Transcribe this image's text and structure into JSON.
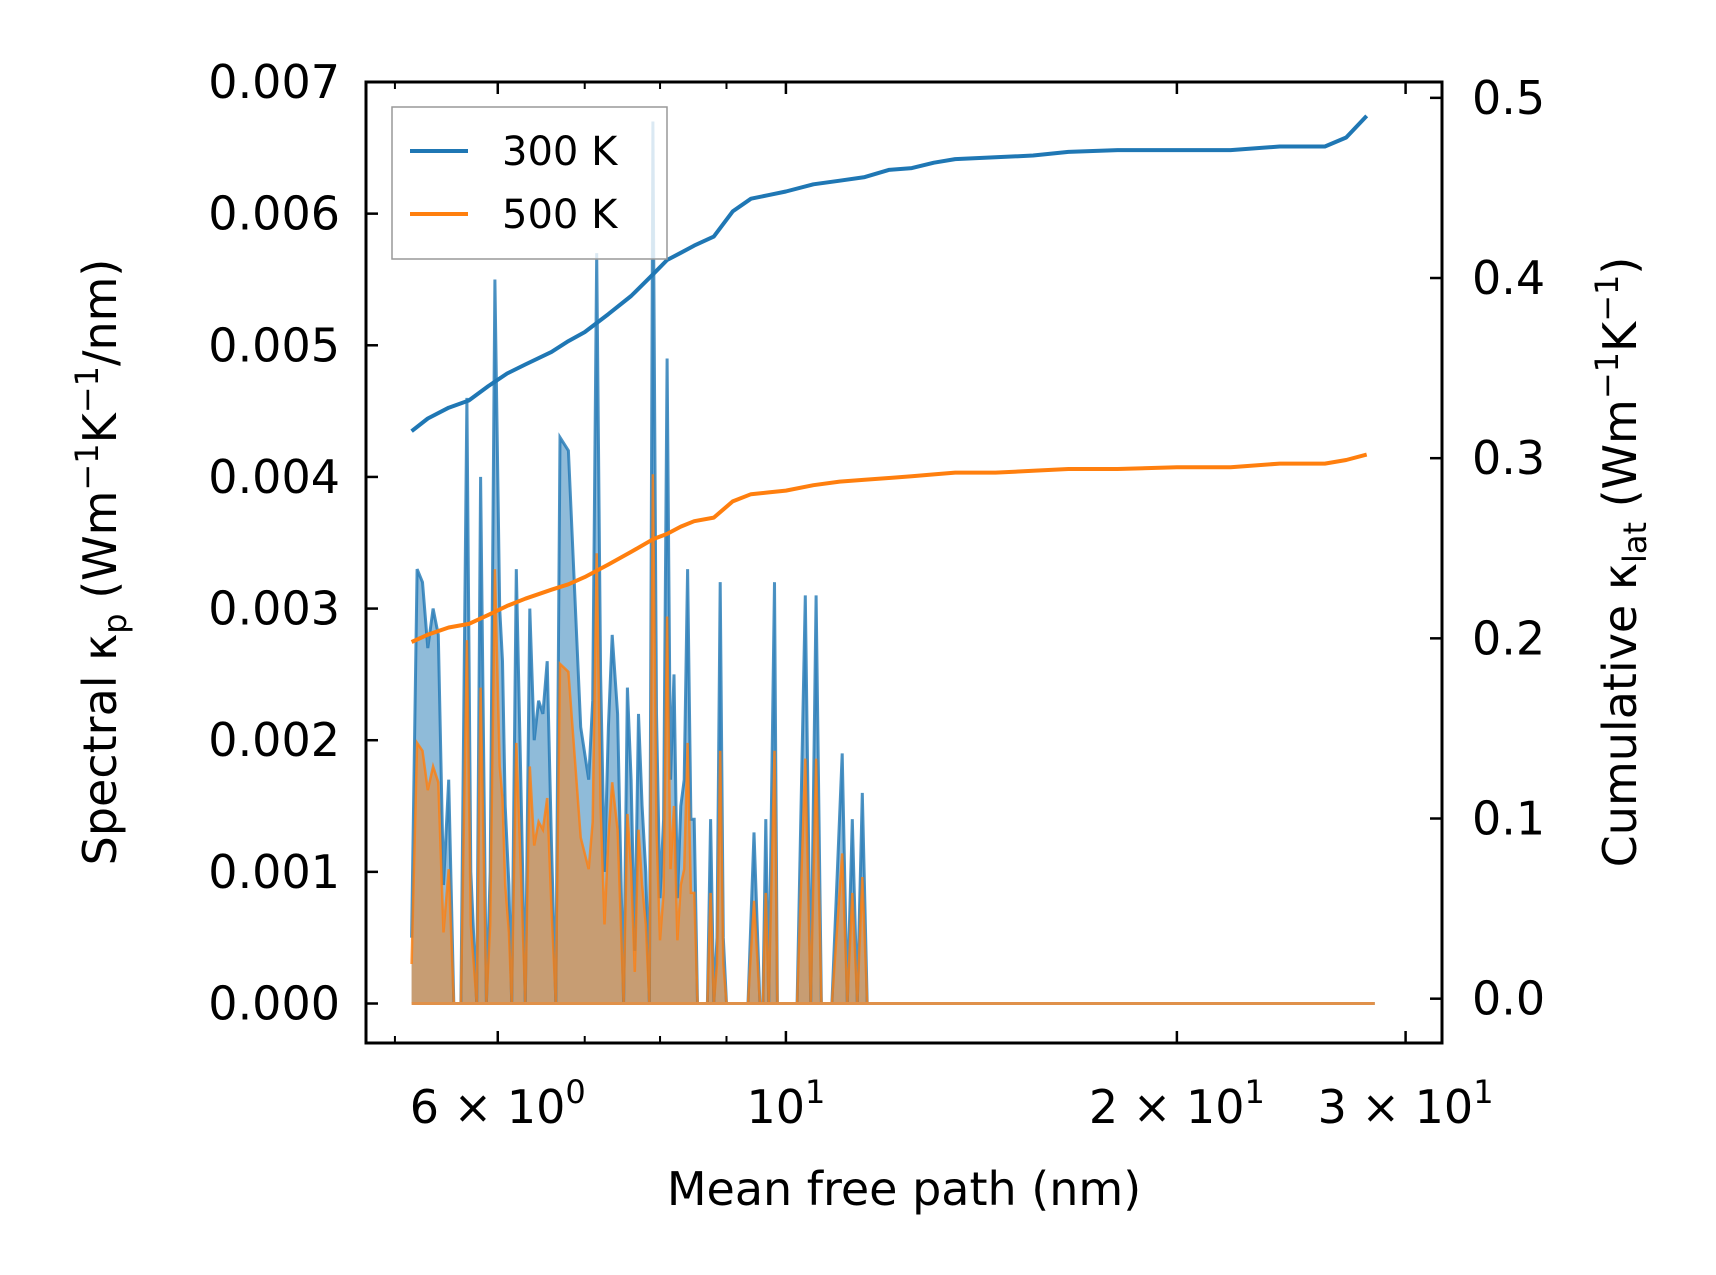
{
  "chart_data": {
    "type": "line",
    "xscale": "log",
    "xlabel": "Mean free path (nm)",
    "ylabel_left": {
      "main": "Spectral κ",
      "sub": "p",
      "unit_open": " (Wm",
      "sup1": "−1",
      "mid": "K",
      "sup2": "−1",
      "unit_close": "/nm)"
    },
    "ylabel_right": {
      "main": "Cumulative κ",
      "sub": "lat",
      "unit_open": " (Wm",
      "sup1": "−1",
      "mid": "K",
      "sup2": "−1",
      "unit_close": ")"
    },
    "xlim": [
      4.75,
      32.0
    ],
    "ylim_left": [
      -0.0003,
      0.007
    ],
    "ylim_right": [
      -0.0246,
      0.5088
    ],
    "x_ticks": [
      {
        "value": 6,
        "mantissa": "6",
        "op": " × 10",
        "exp": "0"
      },
      {
        "value": 10,
        "mantissa": "",
        "op": "10",
        "exp": "1"
      },
      {
        "value": 20,
        "mantissa": "2",
        "op": " × 10",
        "exp": "1"
      },
      {
        "value": 30,
        "mantissa": "3",
        "op": " × 10",
        "exp": "1"
      }
    ],
    "y_left_ticks": [
      "0.000",
      "0.001",
      "0.002",
      "0.003",
      "0.004",
      "0.005",
      "0.006",
      "0.007"
    ],
    "y_right_ticks": [
      "0.0",
      "0.1",
      "0.2",
      "0.3",
      "0.4",
      "0.5"
    ],
    "legend": {
      "position": "top-left",
      "entries": [
        "300 K",
        "500 K"
      ]
    },
    "colors": {
      "300K": "#1f77b4",
      "500K": "#ff7f0e",
      "fill300": "#1f77b4",
      "fill500": "#ff7f0e"
    },
    "series": [
      {
        "name": "300 K",
        "axis": "right",
        "kind": "cumulative",
        "x": [
          5.15,
          5.3,
          5.5,
          5.7,
          5.9,
          6.1,
          6.3,
          6.6,
          6.8,
          7.0,
          7.3,
          7.6,
          7.9,
          8.1,
          8.3,
          8.5,
          8.8,
          9.1,
          9.4,
          9.7,
          10.0,
          10.5,
          11.0,
          11.5,
          12.0,
          12.5,
          13.0,
          13.5,
          14.5,
          15.5,
          16.5,
          18.0,
          20.0,
          22.0,
          24.0,
          26.0,
          27.0,
          28.0
        ],
        "y": [
          0.315,
          0.322,
          0.328,
          0.332,
          0.34,
          0.347,
          0.352,
          0.359,
          0.365,
          0.37,
          0.38,
          0.39,
          0.402,
          0.41,
          0.414,
          0.418,
          0.423,
          0.437,
          0.444,
          0.446,
          0.448,
          0.452,
          0.454,
          0.456,
          0.46,
          0.461,
          0.464,
          0.466,
          0.467,
          0.468,
          0.47,
          0.471,
          0.471,
          0.471,
          0.473,
          0.473,
          0.478,
          0.49
        ]
      },
      {
        "name": "500 K",
        "axis": "right",
        "kind": "cumulative",
        "x": [
          5.15,
          5.3,
          5.5,
          5.7,
          5.9,
          6.1,
          6.3,
          6.6,
          6.8,
          7.0,
          7.3,
          7.6,
          7.9,
          8.1,
          8.3,
          8.5,
          8.8,
          9.1,
          9.4,
          9.7,
          10.0,
          10.5,
          11.0,
          11.5,
          12.0,
          12.5,
          13.0,
          13.5,
          14.5,
          15.5,
          16.5,
          18.0,
          20.0,
          22.0,
          24.0,
          26.0,
          27.0,
          28.0
        ],
        "y": [
          0.198,
          0.202,
          0.206,
          0.208,
          0.213,
          0.218,
          0.222,
          0.227,
          0.23,
          0.234,
          0.241,
          0.248,
          0.255,
          0.258,
          0.262,
          0.265,
          0.267,
          0.276,
          0.28,
          0.281,
          0.282,
          0.285,
          0.287,
          0.288,
          0.289,
          0.29,
          0.291,
          0.292,
          0.292,
          0.293,
          0.294,
          0.294,
          0.295,
          0.295,
          0.297,
          0.297,
          0.299,
          0.302
        ]
      },
      {
        "name": "300 K spectral",
        "axis": "left",
        "kind": "spectral",
        "x": [
          5.15,
          5.2,
          5.25,
          5.3,
          5.35,
          5.4,
          5.45,
          5.5,
          5.55,
          5.58,
          5.62,
          5.68,
          5.72,
          5.78,
          5.82,
          5.88,
          5.92,
          5.97,
          6.02,
          6.05,
          6.08,
          6.12,
          6.15,
          6.2,
          6.25,
          6.3,
          6.35,
          6.4,
          6.45,
          6.5,
          6.55,
          6.6,
          6.65,
          6.7,
          6.8,
          6.95,
          7.05,
          7.1,
          7.15,
          7.2,
          7.25,
          7.3,
          7.35,
          7.42,
          7.5,
          7.55,
          7.6,
          7.65,
          7.7,
          7.75,
          7.8,
          7.85,
          7.9,
          7.95,
          8.0,
          8.05,
          8.1,
          8.15,
          8.2,
          8.25,
          8.3,
          8.35,
          8.4,
          8.45,
          8.5,
          8.55,
          8.6,
          8.65,
          8.7,
          8.75,
          8.8,
          8.85,
          8.9,
          8.95,
          9.0,
          9.05,
          9.1,
          9.15,
          9.2,
          9.25,
          9.3,
          9.35,
          9.45,
          9.55,
          9.6,
          9.65,
          9.7,
          9.8,
          9.85,
          9.95,
          10.05,
          10.1,
          10.15,
          10.2,
          10.35,
          10.45,
          10.55,
          10.65,
          10.75,
          10.85,
          11.05,
          11.15,
          11.25,
          11.35,
          11.45,
          11.55,
          11.65,
          11.75,
          11.85,
          11.95,
          12.05,
          12.3,
          12.5,
          12.6,
          12.75,
          12.85,
          13.05,
          13.15,
          13.25,
          13.4,
          13.5,
          14.4,
          14.7,
          14.9,
          15.4,
          15.6,
          15.8,
          16.0,
          16.3,
          16.5,
          23.8,
          24.1,
          24.4,
          27.0,
          27.25,
          27.5,
          27.7,
          27.9,
          28.2,
          28.4
        ],
        "y": [
          0.0005,
          0.0033,
          0.0032,
          0.0027,
          0.003,
          0.0028,
          0.0009,
          0.0017,
          0.0,
          0.0,
          0.0,
          0.0046,
          0.001,
          0.0,
          0.004,
          0.0,
          0.001,
          0.0055,
          0.003,
          0.0026,
          0.0015,
          0.0009,
          0.0,
          0.0033,
          0.0017,
          0.0,
          0.003,
          0.002,
          0.0023,
          0.0022,
          0.0026,
          0.0012,
          0.0,
          0.0043,
          0.0042,
          0.0021,
          0.0017,
          0.0023,
          0.0057,
          0.0025,
          0.001,
          0.0021,
          0.0028,
          0.0022,
          0.0,
          0.0024,
          0.0017,
          0.0004,
          0.0022,
          0.0015,
          0.001,
          0.0,
          0.0067,
          0.0022,
          0.0008,
          0.0014,
          0.0049,
          0.0017,
          0.0025,
          0.0008,
          0.0015,
          0.0017,
          0.0033,
          0.0014,
          0.0014,
          0.0,
          0.0,
          0.0,
          0.0,
          0.0014,
          0.0,
          0.0005,
          0.0032,
          0.0005,
          0.0,
          0.0,
          0.0,
          0.0,
          0.0,
          0.0,
          0.0,
          0.0,
          0.0013,
          0.0,
          0.0,
          0.0014,
          0.0,
          0.0032,
          0.0,
          0.0,
          0.0,
          0.0,
          0.0,
          0.0,
          0.0031,
          0.0,
          0.0031,
          0.0,
          0.0,
          0.0,
          0.0019,
          0.0,
          0.0014,
          0.0,
          0.0016,
          0.0,
          0.0,
          0.0,
          0.0,
          0.0,
          0.0,
          0.0,
          0.0,
          0.0,
          0.0,
          0.0,
          0.0,
          0.0,
          0.0,
          0.0,
          0.0,
          0.0,
          0.0,
          0.0,
          0.0,
          0.0,
          0.0,
          0.0,
          0.0,
          0.0,
          0.0,
          0.0,
          0.0,
          0.0,
          0.0,
          0.0,
          0.0,
          0.0,
          0.0,
          0.0
        ]
      }
    ]
  }
}
